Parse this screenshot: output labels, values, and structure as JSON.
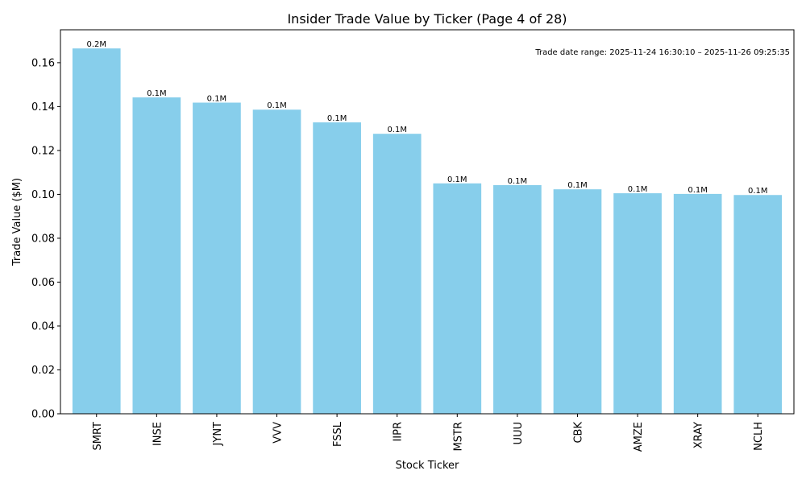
{
  "chart_data": {
    "type": "bar",
    "title": "Insider Trade Value by Ticker (Page 4 of 28)",
    "xlabel": "Stock Ticker",
    "ylabel": "Trade Value ($M)",
    "ylim": [
      0,
      0.175
    ],
    "yticks": [
      0.0,
      0.02,
      0.04,
      0.06,
      0.08,
      0.1,
      0.12,
      0.14,
      0.16
    ],
    "ytick_labels": [
      "0.00",
      "0.02",
      "0.04",
      "0.06",
      "0.08",
      "0.10",
      "0.12",
      "0.14",
      "0.16"
    ],
    "categories": [
      "SMRT",
      "INSE",
      "JYNT",
      "VVV",
      "FSSL",
      "IIPR",
      "MSTR",
      "UUU",
      "CBK",
      "AMZE",
      "XRAY",
      "NCLH"
    ],
    "values": [
      0.1665,
      0.1442,
      0.1418,
      0.1386,
      0.1328,
      0.1276,
      0.105,
      0.1042,
      0.1023,
      0.1005,
      0.1002,
      0.0997
    ],
    "data_labels": [
      "0.2M",
      "0.1M",
      "0.1M",
      "0.1M",
      "0.1M",
      "0.1M",
      "0.1M",
      "0.1M",
      "0.1M",
      "0.1M",
      "0.1M",
      "0.1M"
    ],
    "annotation": "Trade date range: 2025-11-24 16:30:10 – 2025-11-26 09:25:35",
    "bar_color": "#87ceeb",
    "grid": false,
    "legend": "none"
  }
}
